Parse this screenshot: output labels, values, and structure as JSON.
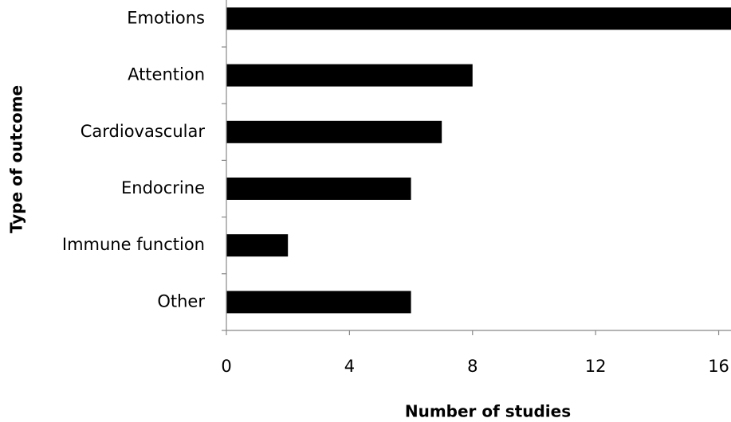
{
  "chart_data": {
    "type": "bar",
    "orientation": "horizontal",
    "x_label": "Number of studies",
    "y_label": "Type of outcome",
    "categories": [
      "Emotions",
      "Attention",
      "Cardiovascular",
      "Endocrine",
      "Immune function",
      "Other"
    ],
    "values": [
      17,
      8,
      7,
      6,
      2,
      6
    ],
    "color": "#000000",
    "xlim": [
      0,
      16.4
    ],
    "xticks": [
      0,
      4,
      8,
      12,
      16
    ],
    "grid": false
  }
}
